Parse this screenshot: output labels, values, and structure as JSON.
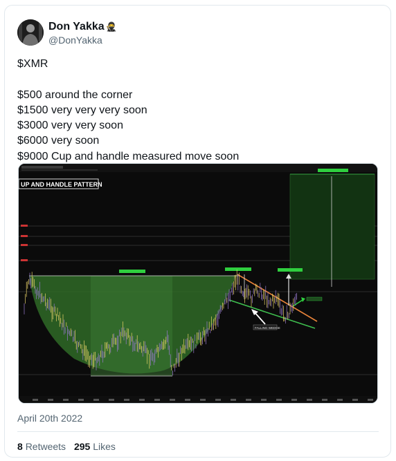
{
  "author": {
    "display_name": "Don Yakka",
    "name_emoji": "🥷",
    "handle": "@DonYakka",
    "avatar_icon": "profile-photo"
  },
  "tweet": {
    "lines": [
      "$XMR",
      "",
      "$500 around the corner",
      "$1500 very very very soon",
      "$3000 very very soon",
      "$6000 very soon",
      "$9000 Cup and handle measured move soon"
    ]
  },
  "image": {
    "pattern_label": "UP AND HANDLE PATTERN",
    "falling_wedge_label": "FALLING WEDGE",
    "colors": {
      "background": "#0b0b0b",
      "cup_fill": "#3f7a33",
      "target_fill": "#173d17",
      "wedge_upper": "#e8833a",
      "wedge_lower": "#3fbf4f",
      "candles_up": "#e8d36a",
      "candles_down": "#9a7ad0"
    }
  },
  "date": "April 20th 2022",
  "stats": {
    "retweets_count": "8",
    "retweets_label": "Retweets",
    "likes_count": "295",
    "likes_label": "Likes"
  }
}
